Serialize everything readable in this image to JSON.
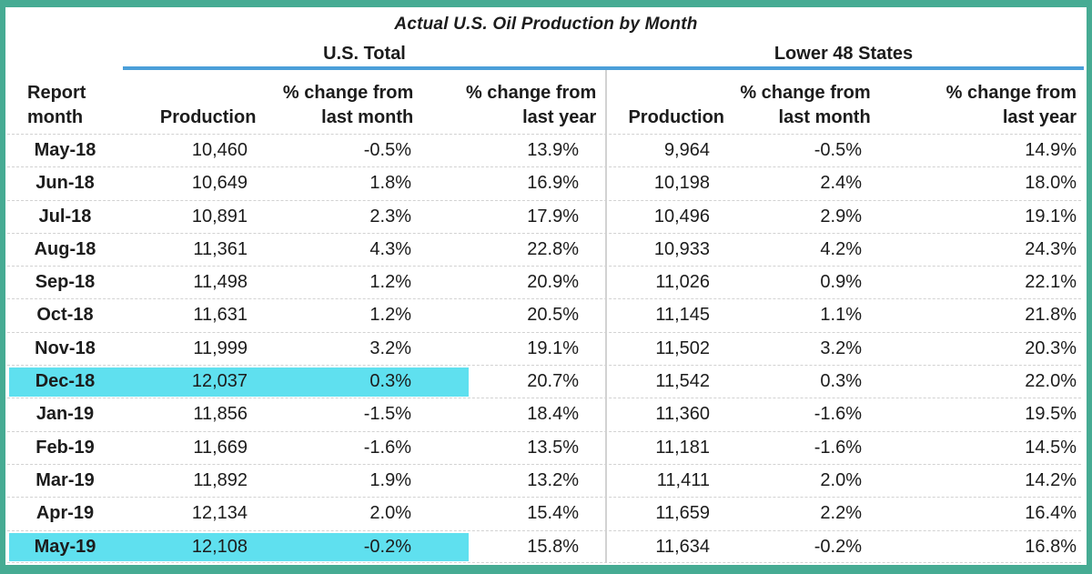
{
  "title": "Actual U.S. Oil Production by Month",
  "colors": {
    "frame_green": "#46ab93",
    "highlight_cyan": "#5fe0ef",
    "underline_blue": "#4b9fd9",
    "text": "#1c1c1c"
  },
  "header": {
    "row_label": {
      "line1": "Report",
      "line2": "month"
    },
    "groups": [
      {
        "label": "U.S. Total"
      },
      {
        "label": "Lower 48 States"
      }
    ],
    "columns": {
      "production": "Production",
      "pct_month_line1": "% change from",
      "pct_month_line2": "last month",
      "pct_year_line1": "% change from",
      "pct_year_line2": "last year"
    }
  },
  "table": {
    "rows": [
      {
        "month": "May-18",
        "us_production": "10,460",
        "us_pct_month": "-0.5%",
        "us_pct_year": "13.9%",
        "l48_production": "9,964",
        "l48_pct_month": "-0.5%",
        "l48_pct_year": "14.9%",
        "highlight": false
      },
      {
        "month": "Jun-18",
        "us_production": "10,649",
        "us_pct_month": "1.8%",
        "us_pct_year": "16.9%",
        "l48_production": "10,198",
        "l48_pct_month": "2.4%",
        "l48_pct_year": "18.0%",
        "highlight": false
      },
      {
        "month": "Jul-18",
        "us_production": "10,891",
        "us_pct_month": "2.3%",
        "us_pct_year": "17.9%",
        "l48_production": "10,496",
        "l48_pct_month": "2.9%",
        "l48_pct_year": "19.1%",
        "highlight": false
      },
      {
        "month": "Aug-18",
        "us_production": "11,361",
        "us_pct_month": "4.3%",
        "us_pct_year": "22.8%",
        "l48_production": "10,933",
        "l48_pct_month": "4.2%",
        "l48_pct_year": "24.3%",
        "highlight": false
      },
      {
        "month": "Sep-18",
        "us_production": "11,498",
        "us_pct_month": "1.2%",
        "us_pct_year": "20.9%",
        "l48_production": "11,026",
        "l48_pct_month": "0.9%",
        "l48_pct_year": "22.1%",
        "highlight": false
      },
      {
        "month": "Oct-18",
        "us_production": "11,631",
        "us_pct_month": "1.2%",
        "us_pct_year": "20.5%",
        "l48_production": "11,145",
        "l48_pct_month": "1.1%",
        "l48_pct_year": "21.8%",
        "highlight": false
      },
      {
        "month": "Nov-18",
        "us_production": "11,999",
        "us_pct_month": "3.2%",
        "us_pct_year": "19.1%",
        "l48_production": "11,502",
        "l48_pct_month": "3.2%",
        "l48_pct_year": "20.3%",
        "highlight": false
      },
      {
        "month": "Dec-18",
        "us_production": "12,037",
        "us_pct_month": "0.3%",
        "us_pct_year": "20.7%",
        "l48_production": "11,542",
        "l48_pct_month": "0.3%",
        "l48_pct_year": "22.0%",
        "highlight": true
      },
      {
        "month": "Jan-19",
        "us_production": "11,856",
        "us_pct_month": "-1.5%",
        "us_pct_year": "18.4%",
        "l48_production": "11,360",
        "l48_pct_month": "-1.6%",
        "l48_pct_year": "19.5%",
        "highlight": false
      },
      {
        "month": "Feb-19",
        "us_production": "11,669",
        "us_pct_month": "-1.6%",
        "us_pct_year": "13.5%",
        "l48_production": "11,181",
        "l48_pct_month": "-1.6%",
        "l48_pct_year": "14.5%",
        "highlight": false
      },
      {
        "month": "Mar-19",
        "us_production": "11,892",
        "us_pct_month": "1.9%",
        "us_pct_year": "13.2%",
        "l48_production": "11,411",
        "l48_pct_month": "2.0%",
        "l48_pct_year": "14.2%",
        "highlight": false
      },
      {
        "month": "Apr-19",
        "us_production": "12,134",
        "us_pct_month": "2.0%",
        "us_pct_year": "15.4%",
        "l48_production": "11,659",
        "l48_pct_month": "2.2%",
        "l48_pct_year": "16.4%",
        "highlight": false
      },
      {
        "month": "May-19",
        "us_production": "12,108",
        "us_pct_month": "-0.2%",
        "us_pct_year": "15.8%",
        "l48_production": "11,634",
        "l48_pct_month": "-0.2%",
        "l48_pct_year": "16.8%",
        "highlight": true
      }
    ]
  },
  "chart_data": {
    "type": "table",
    "title": "Actual U.S. Oil Production by Month",
    "column_groups": [
      "U.S. Total",
      "Lower 48 States"
    ],
    "columns": [
      "Report month",
      "U.S. Total Production",
      "U.S. Total % change from last month",
      "U.S. Total % change from last year",
      "Lower 48 States Production",
      "Lower 48 States % change from last month",
      "Lower 48 States % change from last year"
    ],
    "rows": [
      [
        "May-18",
        10460,
        -0.5,
        13.9,
        9964,
        -0.5,
        14.9
      ],
      [
        "Jun-18",
        10649,
        1.8,
        16.9,
        10198,
        2.4,
        18.0
      ],
      [
        "Jul-18",
        10891,
        2.3,
        17.9,
        10496,
        2.9,
        19.1
      ],
      [
        "Aug-18",
        11361,
        4.3,
        22.8,
        10933,
        4.2,
        24.3
      ],
      [
        "Sep-18",
        11498,
        1.2,
        20.9,
        11026,
        0.9,
        22.1
      ],
      [
        "Oct-18",
        11631,
        1.2,
        20.5,
        11145,
        1.1,
        21.8
      ],
      [
        "Nov-18",
        11999,
        3.2,
        19.1,
        11502,
        3.2,
        20.3
      ],
      [
        "Dec-18",
        12037,
        0.3,
        20.7,
        11542,
        0.3,
        22.0
      ],
      [
        "Jan-19",
        11856,
        -1.5,
        18.4,
        11360,
        -1.6,
        19.5
      ],
      [
        "Feb-19",
        11669,
        -1.6,
        13.5,
        11181,
        -1.6,
        14.5
      ],
      [
        "Mar-19",
        11892,
        1.9,
        13.2,
        11411,
        2.0,
        14.2
      ],
      [
        "Apr-19",
        12134,
        2.0,
        15.4,
        11659,
        2.2,
        16.4
      ],
      [
        "May-19",
        12108,
        -0.2,
        15.8,
        11634,
        -0.2,
        16.8
      ]
    ],
    "highlighted_rows": [
      "Dec-18",
      "May-19"
    ]
  }
}
